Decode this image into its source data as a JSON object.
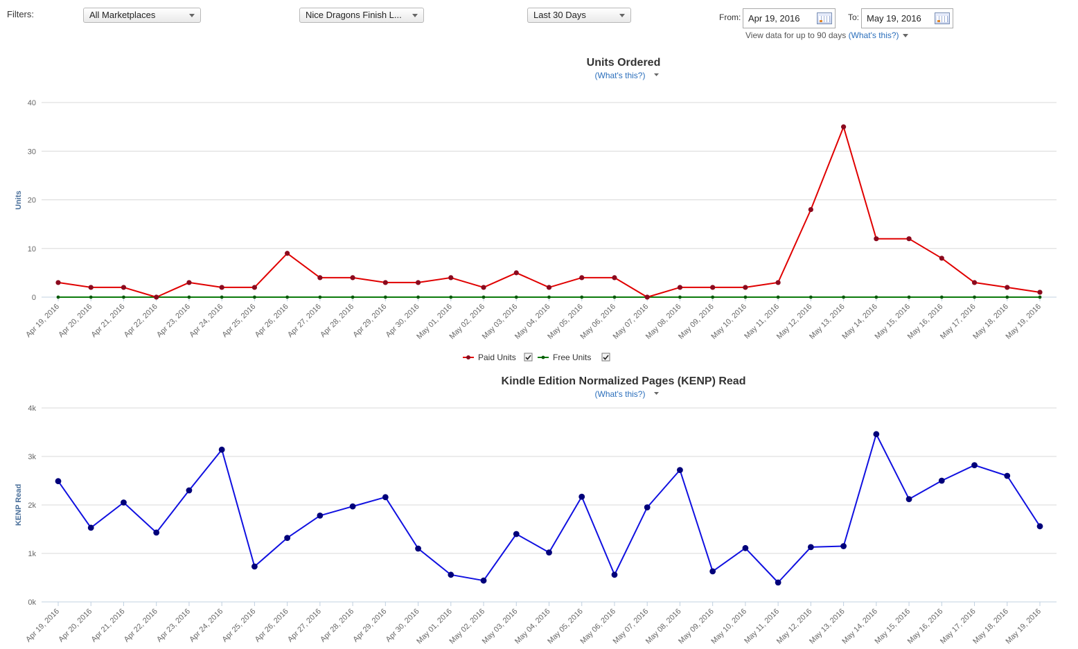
{
  "filters": {
    "label": "Filters:",
    "marketplace": "All Marketplaces",
    "title_select": "Nice Dragons Finish L...",
    "range": "Last 30 Days",
    "from_label": "From:",
    "from_value": "Apr 19, 2016",
    "to_label": "To:",
    "to_value": "May 19, 2016",
    "note": "View data for up to 90 days",
    "note_link": "(What's this?)"
  },
  "colors": {
    "paid": "#e00000",
    "paid_marker": "#8b0a1e",
    "free": "#0a7a0a",
    "free_marker": "#0a5a0a",
    "kenp": "#1010e0",
    "kenp_marker": "#00007a",
    "axis_title": "#4a6f9a",
    "link": "#2a6ebb"
  },
  "chart_data": [
    {
      "type": "line",
      "title": "Units Ordered",
      "subtitle": "(What's this?)",
      "ylabel": "Units",
      "ylim": [
        0,
        40
      ],
      "yticks": [
        "0",
        "10",
        "20",
        "30",
        "40"
      ],
      "grid": true,
      "legend_position": "bottom-center",
      "x": [
        "Apr 19, 2016",
        "Apr 20, 2016",
        "Apr 21, 2016",
        "Apr 22, 2016",
        "Apr 23, 2016",
        "Apr 24, 2016",
        "Apr 25, 2016",
        "Apr 26, 2016",
        "Apr 27, 2016",
        "Apr 28, 2016",
        "Apr 29, 2016",
        "Apr 30, 2016",
        "May 01, 2016",
        "May 02, 2016",
        "May 03, 2016",
        "May 04, 2016",
        "May 05, 2016",
        "May 06, 2016",
        "May 07, 2016",
        "May 08, 2016",
        "May 09, 2016",
        "May 10, 2016",
        "May 11, 2016",
        "May 12, 2016",
        "May 13, 2016",
        "May 14, 2016",
        "May 15, 2016",
        "May 16, 2016",
        "May 17, 2016",
        "May 18, 2016",
        "May 19, 2016"
      ],
      "series": [
        {
          "name": "Paid Units",
          "values": [
            3,
            2,
            2,
            0,
            3,
            2,
            2,
            9,
            4,
            4,
            3,
            3,
            4,
            2,
            5,
            2,
            4,
            4,
            0,
            2,
            2,
            2,
            3,
            18,
            35,
            12,
            12,
            8,
            3,
            2,
            1
          ]
        },
        {
          "name": "Free Units",
          "values": [
            0,
            0,
            0,
            0,
            0,
            0,
            0,
            0,
            0,
            0,
            0,
            0,
            0,
            0,
            0,
            0,
            0,
            0,
            0,
            0,
            0,
            0,
            0,
            0,
            0,
            0,
            0,
            0,
            0,
            0,
            0
          ]
        }
      ]
    },
    {
      "type": "line",
      "title": "Kindle Edition Normalized Pages (KENP) Read",
      "subtitle": "(What's this?)",
      "ylabel": "KENP Read",
      "ylim": [
        0,
        4000
      ],
      "yticks": [
        "0k",
        "1k",
        "2k",
        "3k",
        "4k"
      ],
      "grid": true,
      "x": [
        "Apr 19, 2016",
        "Apr 20, 2016",
        "Apr 21, 2016",
        "Apr 22, 2016",
        "Apr 23, 2016",
        "Apr 24, 2016",
        "Apr 25, 2016",
        "Apr 26, 2016",
        "Apr 27, 2016",
        "Apr 28, 2016",
        "Apr 29, 2016",
        "Apr 30, 2016",
        "May 01, 2016",
        "May 02, 2016",
        "May 03, 2016",
        "May 04, 2016",
        "May 05, 2016",
        "May 06, 2016",
        "May 07, 2016",
        "May 08, 2016",
        "May 09, 2016",
        "May 10, 2016",
        "May 11, 2016",
        "May 12, 2016",
        "May 13, 2016",
        "May 14, 2016",
        "May 15, 2016",
        "May 16, 2016",
        "May 17, 2016",
        "May 18, 2016",
        "May 19, 2016"
      ],
      "series": [
        {
          "name": "",
          "values": [
            2490,
            1530,
            2050,
            1430,
            2300,
            3140,
            730,
            1320,
            1780,
            1970,
            2160,
            1100,
            560,
            440,
            1400,
            1020,
            2170,
            560,
            1950,
            2720,
            630,
            1110,
            400,
            1130,
            1150,
            3460,
            2120,
            2500,
            2820,
            2600,
            1560
          ]
        }
      ]
    }
  ]
}
